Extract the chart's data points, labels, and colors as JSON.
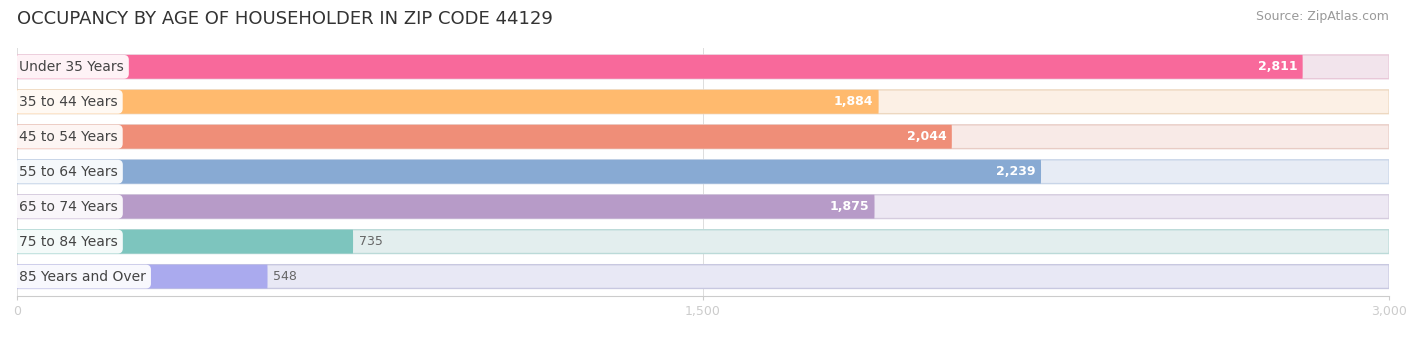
{
  "title": "OCCUPANCY BY AGE OF HOUSEHOLDER IN ZIP CODE 44129",
  "source": "Source: ZipAtlas.com",
  "categories": [
    "Under 35 Years",
    "35 to 44 Years",
    "45 to 54 Years",
    "55 to 64 Years",
    "65 to 74 Years",
    "75 to 84 Years",
    "85 Years and Over"
  ],
  "values": [
    2811,
    1884,
    2044,
    2239,
    1875,
    735,
    548
  ],
  "bar_colors": [
    "#F8699B",
    "#FFBA6E",
    "#EF8E78",
    "#88AAD3",
    "#B79BC8",
    "#7DC5BE",
    "#AAAAEE"
  ],
  "bar_bg_colors": [
    "#F2E4EC",
    "#FCF0E5",
    "#F8EAE7",
    "#E7ECF5",
    "#EDE8F3",
    "#E3EEEE",
    "#E8E8F5"
  ],
  "bar_border_colors": [
    "#E8C8D8",
    "#EDD8C0",
    "#E8CCC5",
    "#C8D5E8",
    "#D5CCDE",
    "#BBDAD8",
    "#C8C8E0"
  ],
  "xlim": [
    0,
    3000
  ],
  "xticks": [
    0,
    1500,
    3000
  ],
  "xtick_labels": [
    "0",
    "1,500",
    "3,000"
  ],
  "title_fontsize": 13,
  "source_fontsize": 9,
  "label_fontsize": 10,
  "value_fontsize": 9,
  "value_inside_threshold": 900,
  "background_color": "#FFFFFF",
  "label_text_color": "#444444",
  "value_inside_color": "#FFFFFF",
  "value_outside_color": "#666666"
}
